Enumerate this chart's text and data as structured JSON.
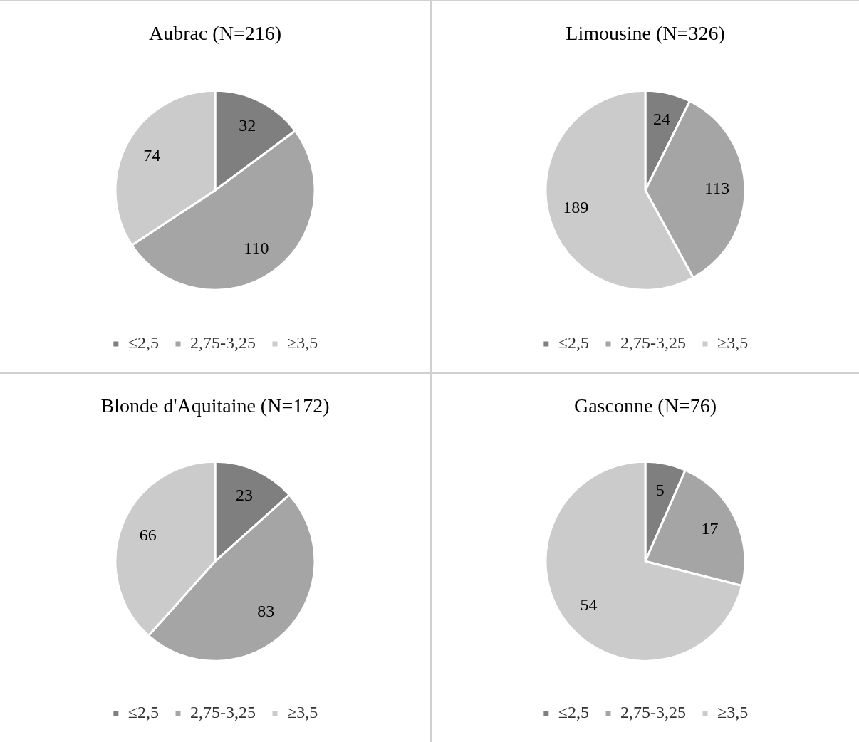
{
  "chart_data": [
    {
      "type": "pie",
      "title": "Aubrac (N=216)",
      "categories": [
        "≤2,5",
        "2,75-3,25",
        "≥3,5"
      ],
      "values": [
        32,
        110,
        74
      ],
      "colors": [
        "#7f7f7f",
        "#a5a5a5",
        "#cbcbcb"
      ],
      "data_labels": true,
      "legend": "bottom"
    },
    {
      "type": "pie",
      "title": "Limousine (N=326)",
      "categories": [
        "≤2,5",
        "2,75-3,25",
        "≥3,5"
      ],
      "values": [
        24,
        113,
        189
      ],
      "colors": [
        "#7f7f7f",
        "#a5a5a5",
        "#cbcbcb"
      ],
      "data_labels": true,
      "legend": "bottom"
    },
    {
      "type": "pie",
      "title": "Blonde d'Aquitaine (N=172)",
      "categories": [
        "≤2,5",
        "2,75-3,25",
        "≥3,5"
      ],
      "values": [
        23,
        83,
        66
      ],
      "colors": [
        "#7f7f7f",
        "#a5a5a5",
        "#cbcbcb"
      ],
      "data_labels": true,
      "legend": "bottom"
    },
    {
      "type": "pie",
      "title": "Gasconne (N=76)",
      "categories": [
        "≤2,5",
        "2,75-3,25",
        "≥3,5"
      ],
      "values": [
        5,
        17,
        54
      ],
      "colors": [
        "#7f7f7f",
        "#a5a5a5",
        "#cbcbcb"
      ],
      "data_labels": true,
      "legend": "bottom"
    }
  ]
}
